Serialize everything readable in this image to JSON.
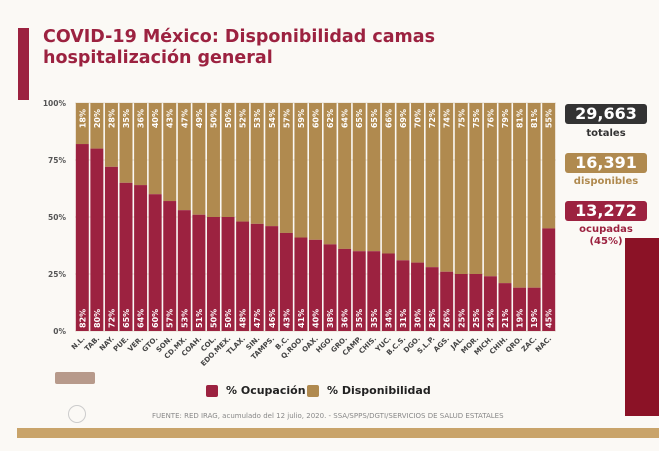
{
  "title": "COVID-19 México: Disponibilidad camas hospitalización general",
  "colors": {
    "ocupacion": "#9c2240",
    "disponibilidad": "#b08a4f",
    "totales": "#333333"
  },
  "summary": {
    "totales_value": "29,663",
    "totales_label": "totales",
    "disponibles_value": "16,391",
    "disponibles_label": "disponibles",
    "ocupadas_value": "13,272",
    "ocupadas_label": "ocupadas",
    "ocupadas_pct": "(45%)"
  },
  "source": "FUENTE: RED IRAG, acumulado del 12 julio, 2020. -  SSA/SPPS/DGTI/SERVICIOS DE SALUD ESTATALES",
  "chart_data": {
    "type": "bar",
    "stacked": true,
    "categories": [
      "N.L.",
      "TAB.",
      "NAY.",
      "PUE.",
      "VER.",
      "GTO.",
      "SON.",
      "CD.MX.",
      "COAH.",
      "COL.",
      "EDO.MEX.",
      "TLAX.",
      "SIN.",
      "TAMPS.",
      "B.C.",
      "Q.ROO.",
      "OAX.",
      "HGO.",
      "GRO.",
      "CAMP.",
      "CHIS.",
      "YUC.",
      "B.C.S.",
      "DGO.",
      "S.L.P.",
      "AGS.",
      "JAL.",
      "MOR.",
      "MICH.",
      "CHIH.",
      "QRO.",
      "ZAC.",
      "NAC."
    ],
    "series": [
      {
        "name": "% Ocupación",
        "values": [
          82,
          80,
          72,
          65,
          64,
          60,
          57,
          53,
          51,
          50,
          50,
          48,
          47,
          46,
          43,
          41,
          40,
          38,
          36,
          35,
          35,
          34,
          31,
          30,
          28,
          26,
          25,
          25,
          24,
          21,
          19,
          19,
          45
        ]
      },
      {
        "name": "% Disponibilidad",
        "values": [
          18,
          20,
          28,
          35,
          36,
          40,
          43,
          47,
          49,
          50,
          50,
          52,
          53,
          54,
          57,
          59,
          60,
          62,
          64,
          65,
          65,
          66,
          69,
          70,
          72,
          74,
          75,
          75,
          76,
          79,
          81,
          81,
          55
        ]
      }
    ],
    "yticks": [
      "0%",
      "25%",
      "50%",
      "75%",
      "100%"
    ],
    "ylim": [
      0,
      100
    ],
    "grid": true,
    "legend": "bottom"
  }
}
